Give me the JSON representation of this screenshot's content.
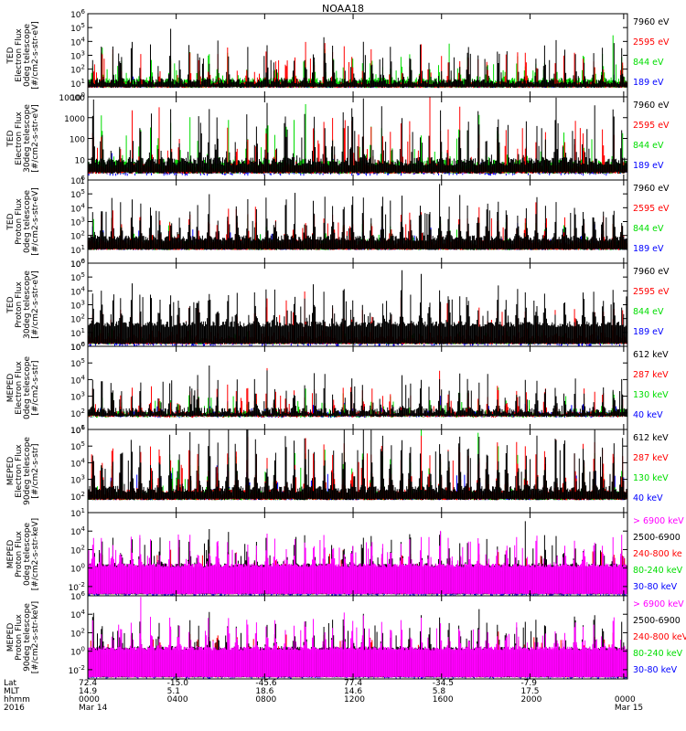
{
  "title": "NOAA18",
  "x_axis": {
    "row_labels": [
      "Lat",
      "MLT",
      "hhmm",
      "2016"
    ],
    "ticks": [
      {
        "lat": "72.4",
        "mlt": "14.9",
        "hhmm": "0000",
        "date": "Mar 14"
      },
      {
        "lat": "-15.0",
        "mlt": "5.1",
        "hhmm": "0400",
        "date": ""
      },
      {
        "lat": "-45.6",
        "mlt": "18.6",
        "hhmm": "0800",
        "date": ""
      },
      {
        "lat": "77.4",
        "mlt": "14.6",
        "hhmm": "1200",
        "date": ""
      },
      {
        "lat": "-34.5",
        "mlt": "5.8",
        "hhmm": "1600",
        "date": ""
      },
      {
        "lat": "-7.9",
        "mlt": "17.5",
        "hhmm": "2000",
        "date": ""
      },
      {
        "lat": "",
        "mlt": "",
        "hhmm": "0000",
        "date": "Mar 15"
      }
    ]
  },
  "chart_data": [
    {
      "type": "line",
      "ylabel_lines": [
        "TED",
        "Electron Flux",
        "0deg telescope",
        "[#/cm2-s-str-eV]"
      ],
      "yscale": "log",
      "ylim_exp": [
        0,
        6
      ],
      "yticks": [
        {
          "base": "10",
          "exp": "0"
        },
        {
          "base": "10",
          "exp": "1"
        },
        {
          "base": "10",
          "exp": "2"
        },
        {
          "base": "10",
          "exp": "3"
        },
        {
          "base": "10",
          "exp": "4"
        },
        {
          "base": "10",
          "exp": "5"
        },
        {
          "base": "10",
          "exp": "6"
        }
      ],
      "legend": [
        {
          "label": "7960 eV",
          "color": "#000000"
        },
        {
          "label": "2595 eV",
          "color": "#ff0000"
        },
        {
          "label": "844 eV",
          "color": "#00dd00"
        },
        {
          "label": "189 eV",
          "color": "#0000ff"
        }
      ],
      "style": "ted_e0"
    },
    {
      "type": "line",
      "ylabel_lines": [
        "TED",
        "Electron Flux",
        "30deg telescope",
        "[#/cm2-s-str-eV]"
      ],
      "yscale": "log",
      "ylim_exp": [
        0,
        4
      ],
      "yticks": [
        {
          "base": "1",
          "exp": ""
        },
        {
          "base": "10",
          "exp": ""
        },
        {
          "base": "100",
          "exp": ""
        },
        {
          "base": "1000",
          "exp": ""
        },
        {
          "base": "10000",
          "exp": ""
        }
      ],
      "legend": [
        {
          "label": "7960 eV",
          "color": "#000000"
        },
        {
          "label": "2595 eV",
          "color": "#ff0000"
        },
        {
          "label": "844 eV",
          "color": "#00dd00"
        },
        {
          "label": "189 eV",
          "color": "#0000ff"
        }
      ],
      "style": "ted_e30"
    },
    {
      "type": "line",
      "ylabel_lines": [
        "TED",
        "Proton Flux",
        "0deg telescope",
        "[#/cm2-s-str-eV]"
      ],
      "yscale": "log",
      "ylim_exp": [
        0,
        6
      ],
      "yticks": [
        {
          "base": "10",
          "exp": "0"
        },
        {
          "base": "10",
          "exp": "1"
        },
        {
          "base": "10",
          "exp": "2"
        },
        {
          "base": "10",
          "exp": "3"
        },
        {
          "base": "10",
          "exp": "4"
        },
        {
          "base": "10",
          "exp": "5"
        },
        {
          "base": "10",
          "exp": "6"
        }
      ],
      "legend": [
        {
          "label": "7960 eV",
          "color": "#000000"
        },
        {
          "label": "2595 eV",
          "color": "#ff0000"
        },
        {
          "label": "844 eV",
          "color": "#00dd00"
        },
        {
          "label": "189 eV",
          "color": "#0000ff"
        }
      ],
      "style": "ted_p0"
    },
    {
      "type": "line",
      "ylabel_lines": [
        "TED",
        "Proton Flux",
        "30deg telescope",
        "[#/cm2-s-str-eV]"
      ],
      "yscale": "log",
      "ylim_exp": [
        0,
        6
      ],
      "yticks": [
        {
          "base": "10",
          "exp": "0"
        },
        {
          "base": "10",
          "exp": "1"
        },
        {
          "base": "10",
          "exp": "2"
        },
        {
          "base": "10",
          "exp": "3"
        },
        {
          "base": "10",
          "exp": "4"
        },
        {
          "base": "10",
          "exp": "5"
        },
        {
          "base": "10",
          "exp": "6"
        }
      ],
      "legend": [
        {
          "label": "7960 eV",
          "color": "#000000"
        },
        {
          "label": "2595 eV",
          "color": "#ff0000"
        },
        {
          "label": "844 eV",
          "color": "#00dd00"
        },
        {
          "label": "189 eV",
          "color": "#0000ff"
        }
      ],
      "style": "ted_p30"
    },
    {
      "type": "line",
      "ylabel_lines": [
        "MEPED",
        "Electron Flux",
        "0deg telescope",
        "[#/cm2-s-str]"
      ],
      "yscale": "log",
      "ylim_exp": [
        1,
        6
      ],
      "yticks": [
        {
          "base": "10",
          "exp": "1"
        },
        {
          "base": "10",
          "exp": "2"
        },
        {
          "base": "10",
          "exp": "3"
        },
        {
          "base": "10",
          "exp": "4"
        },
        {
          "base": "10",
          "exp": "5"
        },
        {
          "base": "10",
          "exp": "6"
        }
      ],
      "legend": [
        {
          "label": "612 keV",
          "color": "#000000"
        },
        {
          "label": "287 keV",
          "color": "#ff0000"
        },
        {
          "label": "130 keV",
          "color": "#00dd00"
        },
        {
          "label": "40 keV",
          "color": "#0000ff"
        }
      ],
      "style": "mep_e0"
    },
    {
      "type": "line",
      "ylabel_lines": [
        "MEPED",
        "Electron Flux",
        "90deg telescope",
        "[#/cm2-s-str]"
      ],
      "yscale": "log",
      "ylim_exp": [
        1,
        6
      ],
      "yticks": [
        {
          "base": "10",
          "exp": "1"
        },
        {
          "base": "10",
          "exp": "2"
        },
        {
          "base": "10",
          "exp": "3"
        },
        {
          "base": "10",
          "exp": "4"
        },
        {
          "base": "10",
          "exp": "5"
        },
        {
          "base": "10",
          "exp": "6"
        }
      ],
      "legend": [
        {
          "label": "612 keV",
          "color": "#000000"
        },
        {
          "label": "287 keV",
          "color": "#ff0000"
        },
        {
          "label": "130 keV",
          "color": "#00dd00"
        },
        {
          "label": "40 keV",
          "color": "#0000ff"
        }
      ],
      "style": "mep_e90"
    },
    {
      "type": "line",
      "ylabel_lines": [
        "MEPED",
        "Proton Flux",
        "0deg telescope",
        "[#/cm2-s-str-keV]"
      ],
      "yscale": "log",
      "ylim_exp": [
        -3,
        6
      ],
      "yticks": [
        {
          "base": "10",
          "exp": "-2"
        },
        {
          "base": "10",
          "exp": "0"
        },
        {
          "base": "10",
          "exp": "2"
        },
        {
          "base": "10",
          "exp": "4"
        }
      ],
      "legend": [
        {
          "label": "> 6900 keV",
          "color": "#ff00ff"
        },
        {
          "label": "2500-6900",
          "color": "#000000"
        },
        {
          "label": "240-800 ke",
          "color": "#ff0000"
        },
        {
          "label": "80-240 keV",
          "color": "#00dd00"
        },
        {
          "label": "30-80 keV",
          "color": "#0000ff"
        }
      ],
      "style": "mep_p0"
    },
    {
      "type": "line",
      "ylabel_lines": [
        "MEPED",
        "Proton Flux",
        "90deg telescope",
        "[#/cm2-s-str-keV]"
      ],
      "yscale": "log",
      "ylim_exp": [
        -3,
        6
      ],
      "yticks": [
        {
          "base": "10",
          "exp": "-2"
        },
        {
          "base": "10",
          "exp": "0"
        },
        {
          "base": "10",
          "exp": "2"
        },
        {
          "base": "10",
          "exp": "4"
        },
        {
          "base": "10",
          "exp": "6"
        }
      ],
      "legend": [
        {
          "label": "> 6900 keV",
          "color": "#ff00ff"
        },
        {
          "label": "2500-6900",
          "color": "#000000"
        },
        {
          "label": "240-800 keV",
          "color": "#ff0000"
        },
        {
          "label": "80-240 keV",
          "color": "#00dd00"
        },
        {
          "label": "30-80 keV",
          "color": "#0000ff"
        }
      ],
      "style": "mep_p90"
    }
  ]
}
